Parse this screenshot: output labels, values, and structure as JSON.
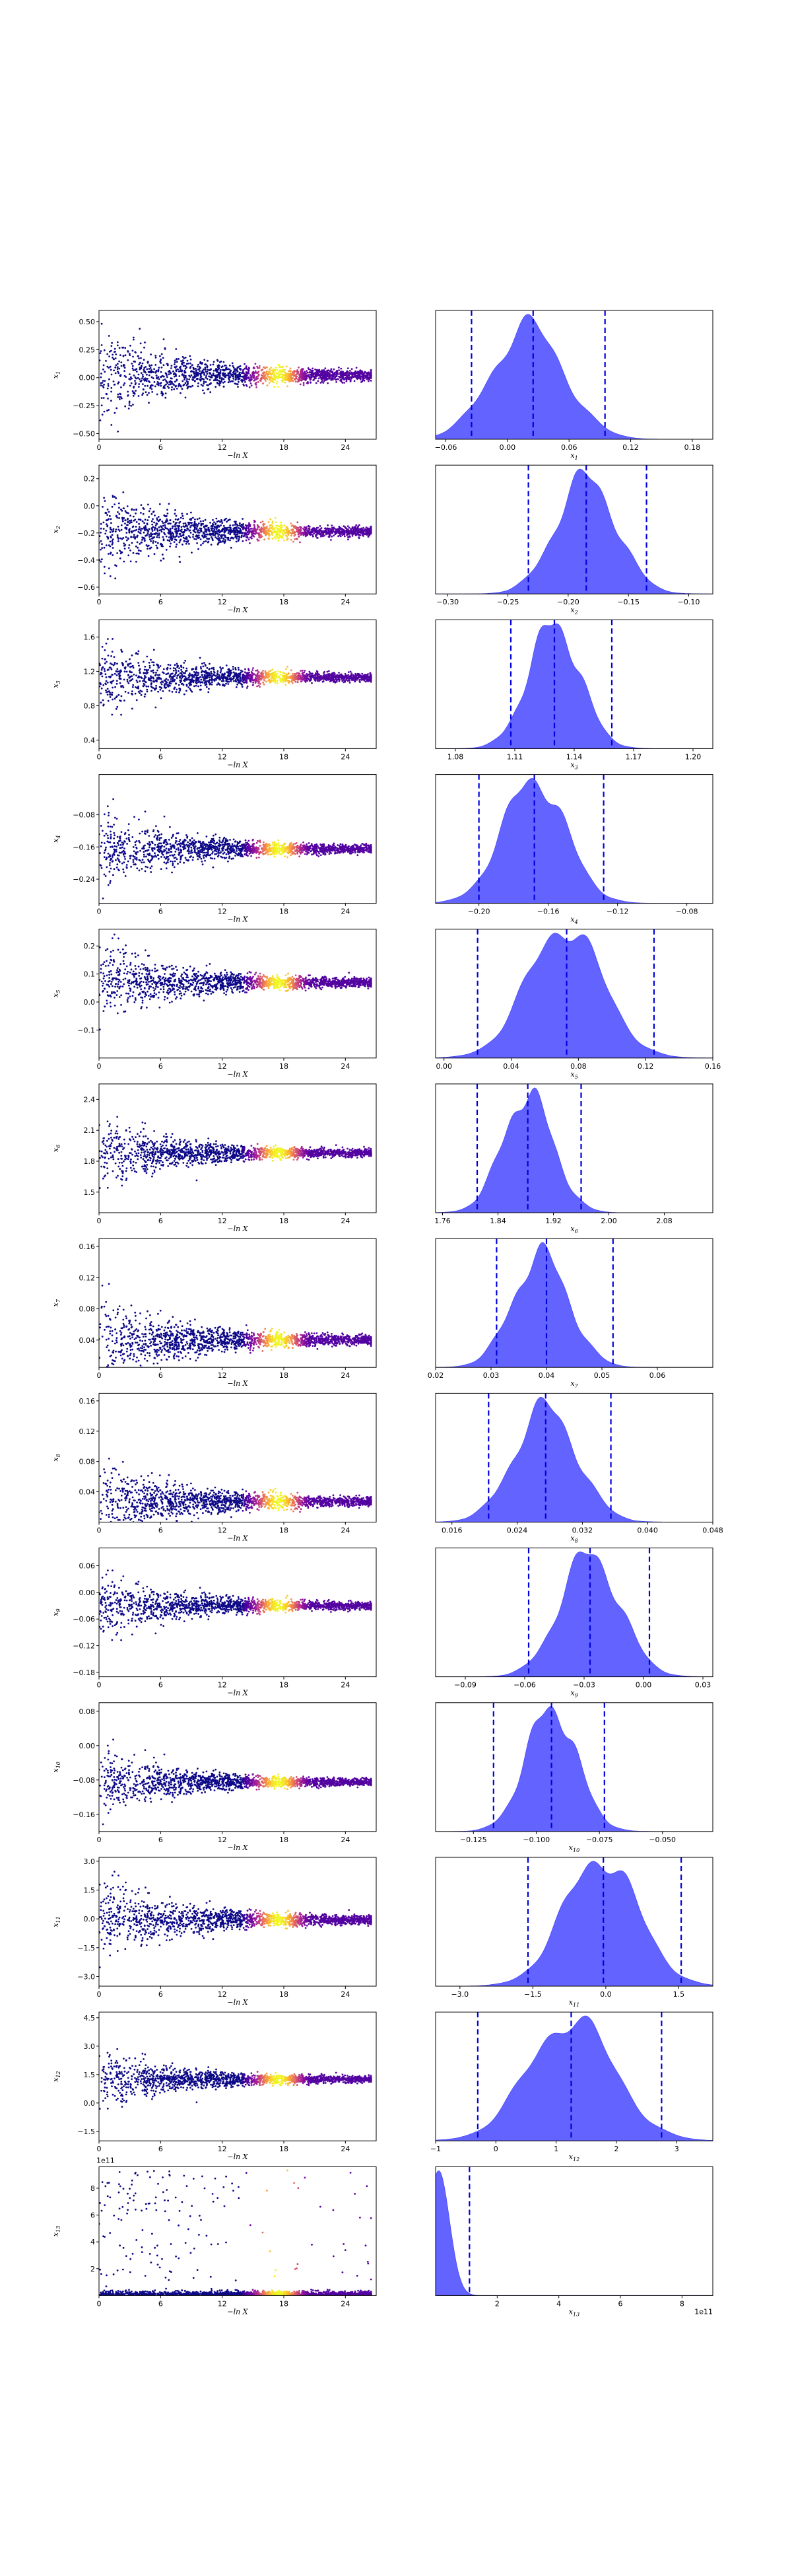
{
  "figure": {
    "rows": 13,
    "scatter_cmap": [
      "#0d0887",
      "#5b02a3",
      "#9a179b",
      "#cb4679",
      "#ed7953",
      "#fdb42f",
      "#f0f921"
    ],
    "kde_fill_color": "#5b5bff",
    "quantile_line_color": "#0000dd",
    "axis_color": "#000000"
  },
  "chart_data": [
    {
      "type": "scatter",
      "panel": 1,
      "xlabel": "−ln X",
      "ylabel": "x₁",
      "sub": "1",
      "xlim": [
        0,
        27
      ],
      "ylim": [
        -0.55,
        0.6
      ],
      "xticks": [
        "0",
        "6",
        "12",
        "18",
        "24"
      ],
      "yticks": [
        "−0.50",
        "−0.25",
        "0.00",
        "0.25",
        "0.50"
      ],
      "ytick_values": [
        -0.5,
        -0.25,
        0,
        0.25,
        0.5
      ],
      "center": 0.02,
      "spread0": 0.45
    },
    {
      "type": "area",
      "panel": 1,
      "xlabel": "x₁",
      "sub": "1",
      "xlim": [
        -0.07,
        0.2
      ],
      "xticks": [
        "−0.06",
        "0.00",
        "0.06",
        "0.12",
        "0.18"
      ],
      "xtick_values": [
        -0.06,
        0,
        0.06,
        0.12,
        0.18
      ],
      "quantiles": [
        -0.035,
        0.025,
        0.095
      ],
      "peak": 0.02,
      "sigma": 0.035
    },
    {
      "type": "scatter",
      "panel": 2,
      "xlabel": "−ln X",
      "ylabel": "x₂",
      "sub": "2",
      "xlim": [
        0,
        27
      ],
      "ylim": [
        -0.65,
        0.3
      ],
      "xticks": [
        "0",
        "6",
        "12",
        "18",
        "24"
      ],
      "yticks": [
        "−0.6",
        "−0.4",
        "−0.2",
        "0.0",
        "0.2"
      ],
      "ytick_values": [
        -0.6,
        -0.4,
        -0.2,
        0,
        0.2
      ],
      "center": -0.19,
      "spread0": 0.35
    },
    {
      "type": "area",
      "panel": 2,
      "xlabel": "x₂",
      "sub": "2",
      "xlim": [
        -0.31,
        -0.08
      ],
      "xticks": [
        "−0.30",
        "−0.25",
        "−0.20",
        "−0.15",
        "−0.10"
      ],
      "xtick_values": [
        -0.3,
        -0.25,
        -0.2,
        -0.15,
        -0.1
      ],
      "quantiles": [
        -0.233,
        -0.185,
        -0.135
      ],
      "peak": -0.185,
      "sigma": 0.025
    },
    {
      "type": "scatter",
      "panel": 3,
      "xlabel": "−ln X",
      "ylabel": "x₃",
      "sub": "3",
      "xlim": [
        0,
        27
      ],
      "ylim": [
        0.3,
        1.8
      ],
      "xticks": [
        "0",
        "6",
        "12",
        "18",
        "24"
      ],
      "yticks": [
        "0.4",
        "0.8",
        "1.2",
        "1.6"
      ],
      "ytick_values": [
        0.4,
        0.8,
        1.2,
        1.6
      ],
      "center": 1.13,
      "spread0": 0.45
    },
    {
      "type": "area",
      "panel": 3,
      "xlabel": "x₃",
      "sub": "3",
      "xlim": [
        1.07,
        1.21
      ],
      "xticks": [
        "1.08",
        "1.11",
        "1.14",
        "1.17",
        "1.20"
      ],
      "xtick_values": [
        1.08,
        1.11,
        1.14,
        1.17,
        1.2
      ],
      "quantiles": [
        1.108,
        1.13,
        1.159
      ],
      "peak": 1.13,
      "sigma": 0.013
    },
    {
      "type": "scatter",
      "panel": 4,
      "xlabel": "−ln X",
      "ylabel": "x₄",
      "sub": "4",
      "xlim": [
        0,
        27
      ],
      "ylim": [
        -0.3,
        0.02
      ],
      "xticks": [
        "0",
        "6",
        "12",
        "18",
        "24"
      ],
      "yticks": [
        "−0.24",
        "−0.16",
        "−0.08"
      ],
      "ytick_values": [
        -0.24,
        -0.16,
        -0.08
      ],
      "center": -0.165,
      "spread0": 0.1
    },
    {
      "type": "area",
      "panel": 4,
      "xlabel": "x₄",
      "sub": "4",
      "xlim": [
        -0.225,
        -0.065
      ],
      "xticks": [
        "−0.20",
        "−0.16",
        "−0.12",
        "−0.08"
      ],
      "xtick_values": [
        -0.2,
        -0.16,
        -0.12,
        -0.08
      ],
      "quantiles": [
        -0.2,
        -0.168,
        -0.128
      ],
      "peak": -0.168,
      "sigma": 0.018
    },
    {
      "type": "scatter",
      "panel": 5,
      "xlabel": "−ln X",
      "ylabel": "x₅",
      "sub": "5",
      "xlim": [
        0,
        27
      ],
      "ylim": [
        -0.2,
        0.26
      ],
      "xticks": [
        "0",
        "6",
        "12",
        "18",
        "24"
      ],
      "yticks": [
        "−0.1",
        "0.0",
        "0.1",
        "0.2"
      ],
      "ytick_values": [
        -0.1,
        0,
        0.1,
        0.2
      ],
      "center": 0.07,
      "spread0": 0.15
    },
    {
      "type": "area",
      "panel": 5,
      "xlabel": "x₅",
      "sub": "5",
      "xlim": [
        -0.005,
        0.16
      ],
      "xticks": [
        "0.00",
        "0.04",
        "0.08",
        "0.12",
        "0.16"
      ],
      "xtick_values": [
        0,
        0.04,
        0.08,
        0.12,
        0.16
      ],
      "quantiles": [
        0.02,
        0.073,
        0.125
      ],
      "peak": 0.072,
      "sigma": 0.022
    },
    {
      "type": "scatter",
      "panel": 6,
      "xlabel": "−ln X",
      "ylabel": "x₆",
      "sub": "6",
      "xlim": [
        0,
        27
      ],
      "ylim": [
        1.3,
        2.55
      ],
      "xticks": [
        "0",
        "6",
        "12",
        "18",
        "24"
      ],
      "yticks": [
        "1.5",
        "1.8",
        "2.1",
        "2.4"
      ],
      "ytick_values": [
        1.5,
        1.8,
        2.1,
        2.4
      ],
      "center": 1.88,
      "spread0": 0.35
    },
    {
      "type": "area",
      "panel": 6,
      "xlabel": "x₆",
      "sub": "6",
      "xlim": [
        1.75,
        2.15
      ],
      "xticks": [
        "1.76",
        "1.84",
        "1.92",
        "2.00",
        "2.08"
      ],
      "xtick_values": [
        1.76,
        1.84,
        1.92,
        2,
        2.08
      ],
      "quantiles": [
        1.81,
        1.883,
        1.96
      ],
      "peak": 1.883,
      "sigma": 0.036
    },
    {
      "type": "scatter",
      "panel": 7,
      "xlabel": "−ln X",
      "ylabel": "x₇",
      "sub": "7",
      "xlim": [
        0,
        27
      ],
      "ylim": [
        0.005,
        0.17
      ],
      "xticks": [
        "0",
        "6",
        "12",
        "18",
        "24"
      ],
      "yticks": [
        "0.04",
        "0.08",
        "0.12",
        "0.16"
      ],
      "ytick_values": [
        0.04,
        0.08,
        0.12,
        0.16
      ],
      "center": 0.04,
      "spread0": 0.06
    },
    {
      "type": "area",
      "panel": 7,
      "xlabel": "x₇",
      "sub": "7",
      "xlim": [
        0.02,
        0.07
      ],
      "xticks": [
        "0.02",
        "0.03",
        "0.04",
        "0.05",
        "0.06"
      ],
      "xtick_values": [
        0.02,
        0.03,
        0.04,
        0.05,
        0.06
      ],
      "quantiles": [
        0.031,
        0.04,
        0.052
      ],
      "peak": 0.039,
      "sigma": 0.005
    },
    {
      "type": "scatter",
      "panel": 8,
      "xlabel": "−ln X",
      "ylabel": "x₈",
      "sub": "8",
      "xlim": [
        0,
        27
      ],
      "ylim": [
        0.0,
        0.17
      ],
      "xticks": [
        "0",
        "6",
        "12",
        "18",
        "24"
      ],
      "yticks": [
        "0.04",
        "0.08",
        "0.12",
        "0.16"
      ],
      "ytick_values": [
        0.04,
        0.08,
        0.12,
        0.16
      ],
      "center": 0.027,
      "spread0": 0.06
    },
    {
      "type": "area",
      "panel": 8,
      "xlabel": "x₈",
      "sub": "8",
      "xlim": [
        0.014,
        0.048
      ],
      "xticks": [
        "0.016",
        "0.024",
        "0.032",
        "0.040",
        "0.048"
      ],
      "xtick_values": [
        0.016,
        0.024,
        0.032,
        0.04,
        0.048
      ],
      "quantiles": [
        0.0205,
        0.0275,
        0.0355
      ],
      "peak": 0.0275,
      "sigma": 0.0038
    },
    {
      "type": "scatter",
      "panel": 9,
      "xlabel": "−ln X",
      "ylabel": "x₉",
      "sub": "9",
      "xlim": [
        0,
        27
      ],
      "ylim": [
        -0.19,
        0.1
      ],
      "xticks": [
        "0",
        "6",
        "12",
        "18",
        "24"
      ],
      "yticks": [
        "−0.18",
        "−0.12",
        "−0.06",
        "0.00",
        "0.06"
      ],
      "ytick_values": [
        -0.18,
        -0.12,
        -0.06,
        0,
        0.06
      ],
      "center": -0.03,
      "spread0": 0.08
    },
    {
      "type": "area",
      "panel": 9,
      "xlabel": "x₉",
      "sub": "9",
      "xlim": [
        -0.105,
        0.035
      ],
      "xticks": [
        "−0.09",
        "−0.06",
        "−0.03",
        "0.00",
        "0.03"
      ],
      "xtick_values": [
        -0.09,
        -0.06,
        -0.03,
        0,
        0.03
      ],
      "quantiles": [
        -0.058,
        -0.027,
        0.003
      ],
      "peak": -0.027,
      "sigma": 0.015
    },
    {
      "type": "scatter",
      "panel": 10,
      "xlabel": "−ln X",
      "ylabel": "x₁₀",
      "sub": "10",
      "xlim": [
        0,
        27
      ],
      "ylim": [
        -0.2,
        0.1
      ],
      "xticks": [
        "0",
        "6",
        "12",
        "18",
        "24"
      ],
      "yticks": [
        "−0.16",
        "−0.08",
        "0.00",
        "0.08"
      ],
      "ytick_values": [
        -0.16,
        -0.08,
        0,
        0.08
      ],
      "center": -0.085,
      "spread0": 0.08
    },
    {
      "type": "area",
      "panel": 10,
      "xlabel": "x₁₀",
      "sub": "10",
      "xlim": [
        -0.14,
        -0.03
      ],
      "xticks": [
        "−0.125",
        "−0.100",
        "−0.075",
        "−0.050"
      ],
      "xtick_values": [
        -0.125,
        -0.1,
        -0.075,
        -0.05
      ],
      "quantiles": [
        -0.117,
        -0.094,
        -0.073
      ],
      "peak": -0.094,
      "sigma": 0.01
    },
    {
      "type": "scatter",
      "panel": 11,
      "xlabel": "−ln X",
      "ylabel": "x₁₁",
      "sub": "11",
      "xlim": [
        0,
        27
      ],
      "ylim": [
        -3.5,
        3.2
      ],
      "xticks": [
        "0",
        "6",
        "12",
        "18",
        "24"
      ],
      "yticks": [
        "−3.0",
        "−1.5",
        "0.0",
        "1.5",
        "3.0"
      ],
      "ytick_values": [
        -3,
        -1.5,
        0,
        1.5,
        3
      ],
      "center": -0.05,
      "spread0": 2.2
    },
    {
      "type": "area",
      "panel": 11,
      "xlabel": "x₁₁",
      "sub": "11",
      "xlim": [
        -3.5,
        2.2
      ],
      "xticks": [
        "−3.0",
        "−1.5",
        "0.0",
        "1.5"
      ],
      "xtick_values": [
        -3,
        -1.5,
        0,
        1.5
      ],
      "quantiles": [
        -1.6,
        -0.05,
        1.55
      ],
      "peak": -0.1,
      "sigma": 0.75
    },
    {
      "type": "scatter",
      "panel": 12,
      "xlabel": "−ln X",
      "ylabel": "x₁₂",
      "sub": "12",
      "xlim": [
        0,
        27
      ],
      "ylim": [
        -2.0,
        4.8
      ],
      "xticks": [
        "0",
        "6",
        "12",
        "18",
        "24"
      ],
      "yticks": [
        "−1.5",
        "0.0",
        "1.5",
        "3.0",
        "4.5"
      ],
      "ytick_values": [
        -1.5,
        0,
        1.5,
        3,
        4.5
      ],
      "center": 1.25,
      "spread0": 1.6
    },
    {
      "type": "area",
      "panel": 12,
      "xlabel": "x₁₂",
      "sub": "12",
      "xlim": [
        -1,
        3.6
      ],
      "xticks": [
        "−1",
        "0",
        "1",
        "2",
        "3"
      ],
      "xtick_values": [
        -1,
        0,
        1,
        2,
        3
      ],
      "quantiles": [
        -0.3,
        1.25,
        2.75
      ],
      "peak": 1.25,
      "sigma": 0.7
    },
    {
      "type": "scatter",
      "panel": 13,
      "xlabel": "−ln X",
      "ylabel": "x₁₃",
      "sub": "13",
      "xlim": [
        0,
        27
      ],
      "ylim": [
        0,
        9.6
      ],
      "xticks": [
        "0",
        "6",
        "12",
        "18",
        "24"
      ],
      "yticks": [
        "2",
        "4",
        "6",
        "8"
      ],
      "ytick_values": [
        2,
        4,
        6,
        8
      ],
      "offset_label": "1e11",
      "center": 0.3,
      "spread0": 9
    },
    {
      "type": "area",
      "panel": 13,
      "xlabel": "x₁₃",
      "sub": "13",
      "xlim": [
        0,
        9
      ],
      "xticks": [
        "2",
        "4",
        "6",
        "8"
      ],
      "xtick_values": [
        2,
        4,
        6,
        8
      ],
      "offset_label": "1e11",
      "quantiles": [
        1.1
      ],
      "peak": 0.1,
      "sigma": 0.35
    }
  ]
}
